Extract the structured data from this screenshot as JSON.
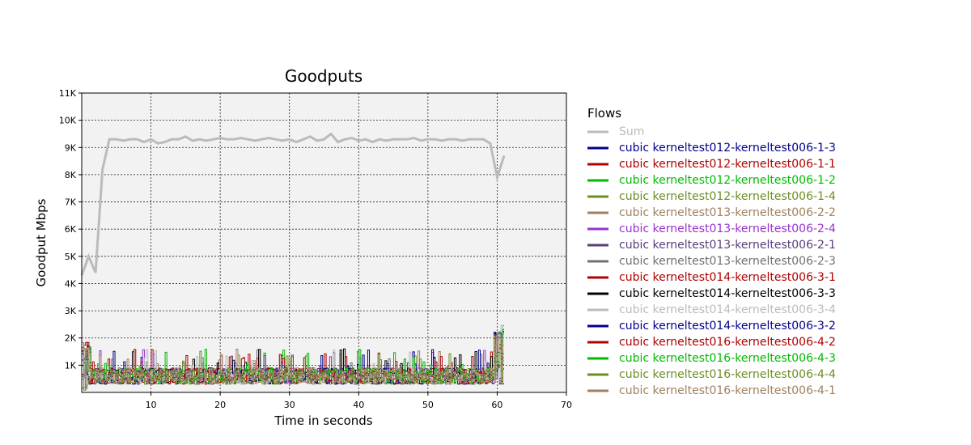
{
  "chart_data": {
    "type": "line",
    "title": "Goodputs",
    "xlabel": "Time in seconds",
    "ylabel": "Goodput Mbps",
    "xlim": [
      0,
      70
    ],
    "ylim": [
      0,
      11000
    ],
    "x_ticks": [
      10,
      20,
      30,
      40,
      50,
      60,
      70
    ],
    "x_tick_labels": [
      "10",
      "20",
      "30",
      "40",
      "50",
      "60",
      "70"
    ],
    "y_ticks": [
      1000,
      2000,
      3000,
      4000,
      5000,
      6000,
      7000,
      8000,
      9000,
      10000,
      11000
    ],
    "y_tick_labels": [
      "1K",
      "2K",
      "3K",
      "4K",
      "5K",
      "6K",
      "7K",
      "8K",
      "9K",
      "10K",
      "11K"
    ],
    "grid": true,
    "legend_position": "right",
    "legend_title": "Flows",
    "sum": {
      "name": "Sum",
      "color": "#bbbbbb",
      "x": [
        0,
        1,
        2,
        3,
        4,
        5,
        6,
        7,
        8,
        9,
        10,
        11,
        12,
        13,
        14,
        15,
        16,
        17,
        18,
        19,
        20,
        21,
        22,
        23,
        24,
        25,
        26,
        27,
        28,
        29,
        30,
        31,
        32,
        33,
        34,
        35,
        36,
        37,
        38,
        39,
        40,
        41,
        42,
        43,
        44,
        45,
        46,
        47,
        48,
        49,
        50,
        51,
        52,
        53,
        54,
        55,
        56,
        57,
        58,
        59,
        60,
        61
      ],
      "y": [
        4300,
        5000,
        4400,
        8200,
        9300,
        9300,
        9250,
        9300,
        9300,
        9200,
        9300,
        9150,
        9200,
        9300,
        9300,
        9400,
        9250,
        9300,
        9250,
        9300,
        9350,
        9300,
        9300,
        9350,
        9300,
        9250,
        9300,
        9350,
        9300,
        9250,
        9300,
        9200,
        9300,
        9400,
        9250,
        9300,
        9500,
        9200,
        9300,
        9350,
        9250,
        9300,
        9200,
        9300,
        9250,
        9300,
        9300,
        9300,
        9350,
        9250,
        9300,
        9300,
        9250,
        9300,
        9300,
        9250,
        9300,
        9300,
        9300,
        9150,
        7900,
        8700
      ]
    },
    "flows": [
      {
        "name": "cubic kerneltest012-kerneltest006-1-3",
        "color": "#00008b"
      },
      {
        "name": "cubic kerneltest012-kerneltest006-1-1",
        "color": "#b00000"
      },
      {
        "name": "cubic kerneltest012-kerneltest006-1-2",
        "color": "#00bb00"
      },
      {
        "name": "cubic kerneltest012-kerneltest006-1-4",
        "color": "#6b8e23"
      },
      {
        "name": "cubic kerneltest013-kerneltest006-2-2",
        "color": "#a08060"
      },
      {
        "name": "cubic kerneltest013-kerneltest006-2-4",
        "color": "#9932cc"
      },
      {
        "name": "cubic kerneltest013-kerneltest006-2-1",
        "color": "#5a3d7a"
      },
      {
        "name": "cubic kerneltest013-kerneltest006-2-3",
        "color": "#707070"
      },
      {
        "name": "cubic kerneltest014-kerneltest006-3-1",
        "color": "#b00000"
      },
      {
        "name": "cubic kerneltest014-kerneltest006-3-3",
        "color": "#000000"
      },
      {
        "name": "cubic kerneltest014-kerneltest006-3-4",
        "color": "#bbbbbb"
      },
      {
        "name": "cubic kerneltest014-kerneltest006-3-2",
        "color": "#00008b"
      },
      {
        "name": "cubic kerneltest016-kerneltest006-4-2",
        "color": "#b00000"
      },
      {
        "name": "cubic kerneltest016-kerneltest006-4-3",
        "color": "#00bb00"
      },
      {
        "name": "cubic kerneltest016-kerneltest006-4-4",
        "color": "#6b8e23"
      },
      {
        "name": "cubic kerneltest016-kerneltest006-4-1",
        "color": "#a08060"
      }
    ],
    "flow_band": {
      "typical_min": 300,
      "typical_max": 900,
      "peak": 1600,
      "end_peak": 2500
    }
  }
}
